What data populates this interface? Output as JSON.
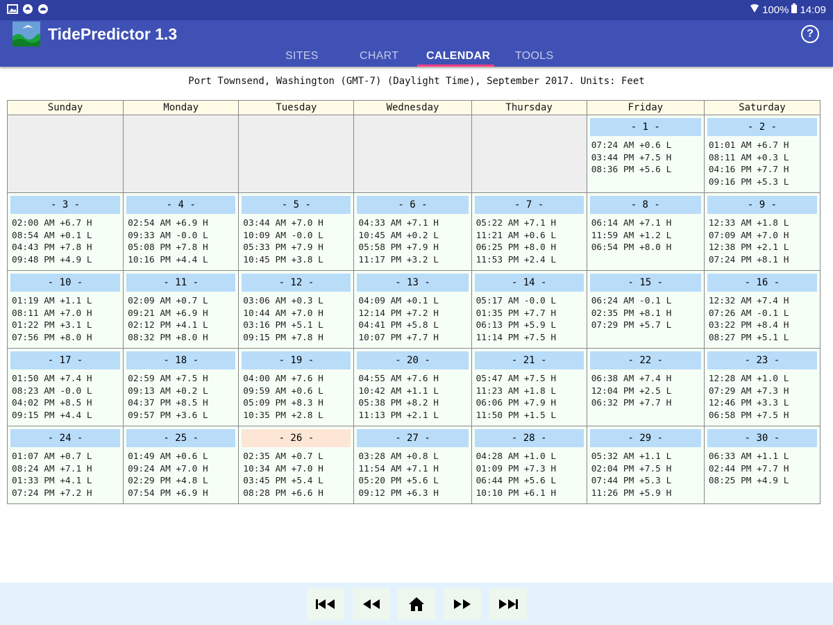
{
  "status_bar": {
    "battery": "100%",
    "time": "14:09"
  },
  "app": {
    "title": "TidePredictor 1.3"
  },
  "tabs": [
    {
      "label": "SITES",
      "active": false
    },
    {
      "label": "CHART",
      "active": false
    },
    {
      "label": "CALENDAR",
      "active": true
    },
    {
      "label": "TOOLS",
      "active": false
    }
  ],
  "calendar": {
    "header": "Port Townsend, Washington (GMT-7) (Daylight Time), September 2017. Units: Feet",
    "weekdays": [
      "Sunday",
      "Monday",
      "Tuesday",
      "Wednesday",
      "Thursday",
      "Friday",
      "Saturday"
    ],
    "today": "- 26 -",
    "weeks": [
      [
        null,
        null,
        null,
        null,
        null,
        {
          "label": "- 1 -",
          "tides": [
            "07:24 AM +0.6 L",
            "03:44 PM +7.5 H",
            "08:36 PM +5.6 L"
          ]
        },
        {
          "label": "- 2 -",
          "tides": [
            "01:01 AM +6.7 H",
            "08:11 AM +0.3 L",
            "04:16 PM +7.7 H",
            "09:16 PM +5.3 L"
          ]
        }
      ],
      [
        {
          "label": "- 3 -",
          "tides": [
            "02:00 AM +6.7 H",
            "08:54 AM +0.1 L",
            "04:43 PM +7.8 H",
            "09:48 PM +4.9 L"
          ]
        },
        {
          "label": "- 4 -",
          "tides": [
            "02:54 AM +6.9 H",
            "09:33 AM -0.0 L",
            "05:08 PM +7.8 H",
            "10:16 PM +4.4 L"
          ]
        },
        {
          "label": "- 5 -",
          "tides": [
            "03:44 AM +7.0 H",
            "10:09 AM -0.0 L",
            "05:33 PM +7.9 H",
            "10:45 PM +3.8 L"
          ]
        },
        {
          "label": "- 6 -",
          "tides": [
            "04:33 AM +7.1 H",
            "10:45 AM +0.2 L",
            "05:58 PM +7.9 H",
            "11:17 PM +3.2 L"
          ]
        },
        {
          "label": "- 7 -",
          "tides": [
            "05:22 AM +7.1 H",
            "11:21 AM +0.6 L",
            "06:25 PM +8.0 H",
            "11:53 PM +2.4 L"
          ]
        },
        {
          "label": "- 8 -",
          "tides": [
            "06:14 AM +7.1 H",
            "11:59 AM +1.2 L",
            "06:54 PM +8.0 H"
          ]
        },
        {
          "label": "- 9 -",
          "tides": [
            "12:33 AM +1.8 L",
            "07:09 AM +7.0 H",
            "12:38 PM +2.1 L",
            "07:24 PM +8.1 H"
          ]
        }
      ],
      [
        {
          "label": "- 10 -",
          "tides": [
            "01:19 AM +1.1 L",
            "08:11 AM +7.0 H",
            "01:22 PM +3.1 L",
            "07:56 PM +8.0 H"
          ]
        },
        {
          "label": "- 11 -",
          "tides": [
            "02:09 AM +0.7 L",
            "09:21 AM +6.9 H",
            "02:12 PM +4.1 L",
            "08:32 PM +8.0 H"
          ]
        },
        {
          "label": "- 12 -",
          "tides": [
            "03:06 AM +0.3 L",
            "10:44 AM +7.0 H",
            "03:16 PM +5.1 L",
            "09:15 PM +7.8 H"
          ]
        },
        {
          "label": "- 13 -",
          "tides": [
            "04:09 AM +0.1 L",
            "12:14 PM +7.2 H",
            "04:41 PM +5.8 L",
            "10:07 PM +7.7 H"
          ]
        },
        {
          "label": "- 14 -",
          "tides": [
            "05:17 AM -0.0 L",
            "01:35 PM +7.7 H",
            "06:13 PM +5.9 L",
            "11:14 PM +7.5 H"
          ]
        },
        {
          "label": "- 15 -",
          "tides": [
            "06:24 AM -0.1 L",
            "02:35 PM +8.1 H",
            "07:29 PM +5.7 L"
          ]
        },
        {
          "label": "- 16 -",
          "tides": [
            "12:32 AM +7.4 H",
            "07:26 AM -0.1 L",
            "03:22 PM +8.4 H",
            "08:27 PM +5.1 L"
          ]
        }
      ],
      [
        {
          "label": "- 17 -",
          "tides": [
            "01:50 AM +7.4 H",
            "08:23 AM -0.0 L",
            "04:02 PM +8.5 H",
            "09:15 PM +4.4 L"
          ]
        },
        {
          "label": "- 18 -",
          "tides": [
            "02:59 AM +7.5 H",
            "09:13 AM +0.2 L",
            "04:37 PM +8.5 H",
            "09:57 PM +3.6 L"
          ]
        },
        {
          "label": "- 19 -",
          "tides": [
            "04:00 AM +7.6 H",
            "09:59 AM +0.6 L",
            "05:09 PM +8.3 H",
            "10:35 PM +2.8 L"
          ]
        },
        {
          "label": "- 20 -",
          "tides": [
            "04:55 AM +7.6 H",
            "10:42 AM +1.1 L",
            "05:38 PM +8.2 H",
            "11:13 PM +2.1 L"
          ]
        },
        {
          "label": "- 21 -",
          "tides": [
            "05:47 AM +7.5 H",
            "11:23 AM +1.8 L",
            "06:06 PM +7.9 H",
            "11:50 PM +1.5 L"
          ]
        },
        {
          "label": "- 22 -",
          "tides": [
            "06:38 AM +7.4 H",
            "12:04 PM +2.5 L",
            "06:32 PM +7.7 H"
          ]
        },
        {
          "label": "- 23 -",
          "tides": [
            "12:28 AM +1.0 L",
            "07:29 AM +7.3 H",
            "12:46 PM +3.3 L",
            "06:58 PM +7.5 H"
          ]
        }
      ],
      [
        {
          "label": "- 24 -",
          "tides": [
            "01:07 AM +0.7 L",
            "08:24 AM +7.1 H",
            "01:33 PM +4.1 L",
            "07:24 PM +7.2 H"
          ]
        },
        {
          "label": "- 25 -",
          "tides": [
            "01:49 AM +0.6 L",
            "09:24 AM +7.0 H",
            "02:29 PM +4.8 L",
            "07:54 PM +6.9 H"
          ]
        },
        {
          "label": "- 26 -",
          "tides": [
            "02:35 AM +0.7 L",
            "10:34 AM +7.0 H",
            "03:45 PM +5.4 L",
            "08:28 PM +6.6 H"
          ]
        },
        {
          "label": "- 27 -",
          "tides": [
            "03:28 AM +0.8 L",
            "11:54 AM +7.1 H",
            "05:20 PM +5.6 L",
            "09:12 PM +6.3 H"
          ]
        },
        {
          "label": "- 28 -",
          "tides": [
            "04:28 AM +1.0 L",
            "01:09 PM +7.3 H",
            "06:44 PM +5.6 L",
            "10:10 PM +6.1 H"
          ]
        },
        {
          "label": "- 29 -",
          "tides": [
            "05:32 AM +1.1 L",
            "02:04 PM +7.5 H",
            "07:44 PM +5.3 L",
            "11:26 PM +5.9 H"
          ]
        },
        {
          "label": "- 30 -",
          "tides": [
            "06:33 AM +1.1 L",
            "02:44 PM +7.7 H",
            "08:25 PM +4.9 L"
          ]
        }
      ]
    ]
  },
  "navigation": [
    {
      "name": "first-page-button",
      "icon": "skip-to-start-icon"
    },
    {
      "name": "previous-page-button",
      "icon": "rewind-icon"
    },
    {
      "name": "home-button",
      "icon": "home-icon"
    },
    {
      "name": "next-page-button",
      "icon": "fast-forward-icon"
    },
    {
      "name": "last-page-button",
      "icon": "skip-to-end-icon"
    }
  ],
  "colors": {
    "status_bar": "#2f3f9f",
    "app_bar": "#3f51b5",
    "tab_indicator": "#ff4081",
    "day_header": "#b9dcf9",
    "today_header": "#fde6d6",
    "weekday_header": "#fffbe6",
    "empty_cell": "#eeeeee",
    "day_cell": "#f6fff6",
    "bottom_bar": "#e3f2fd"
  }
}
